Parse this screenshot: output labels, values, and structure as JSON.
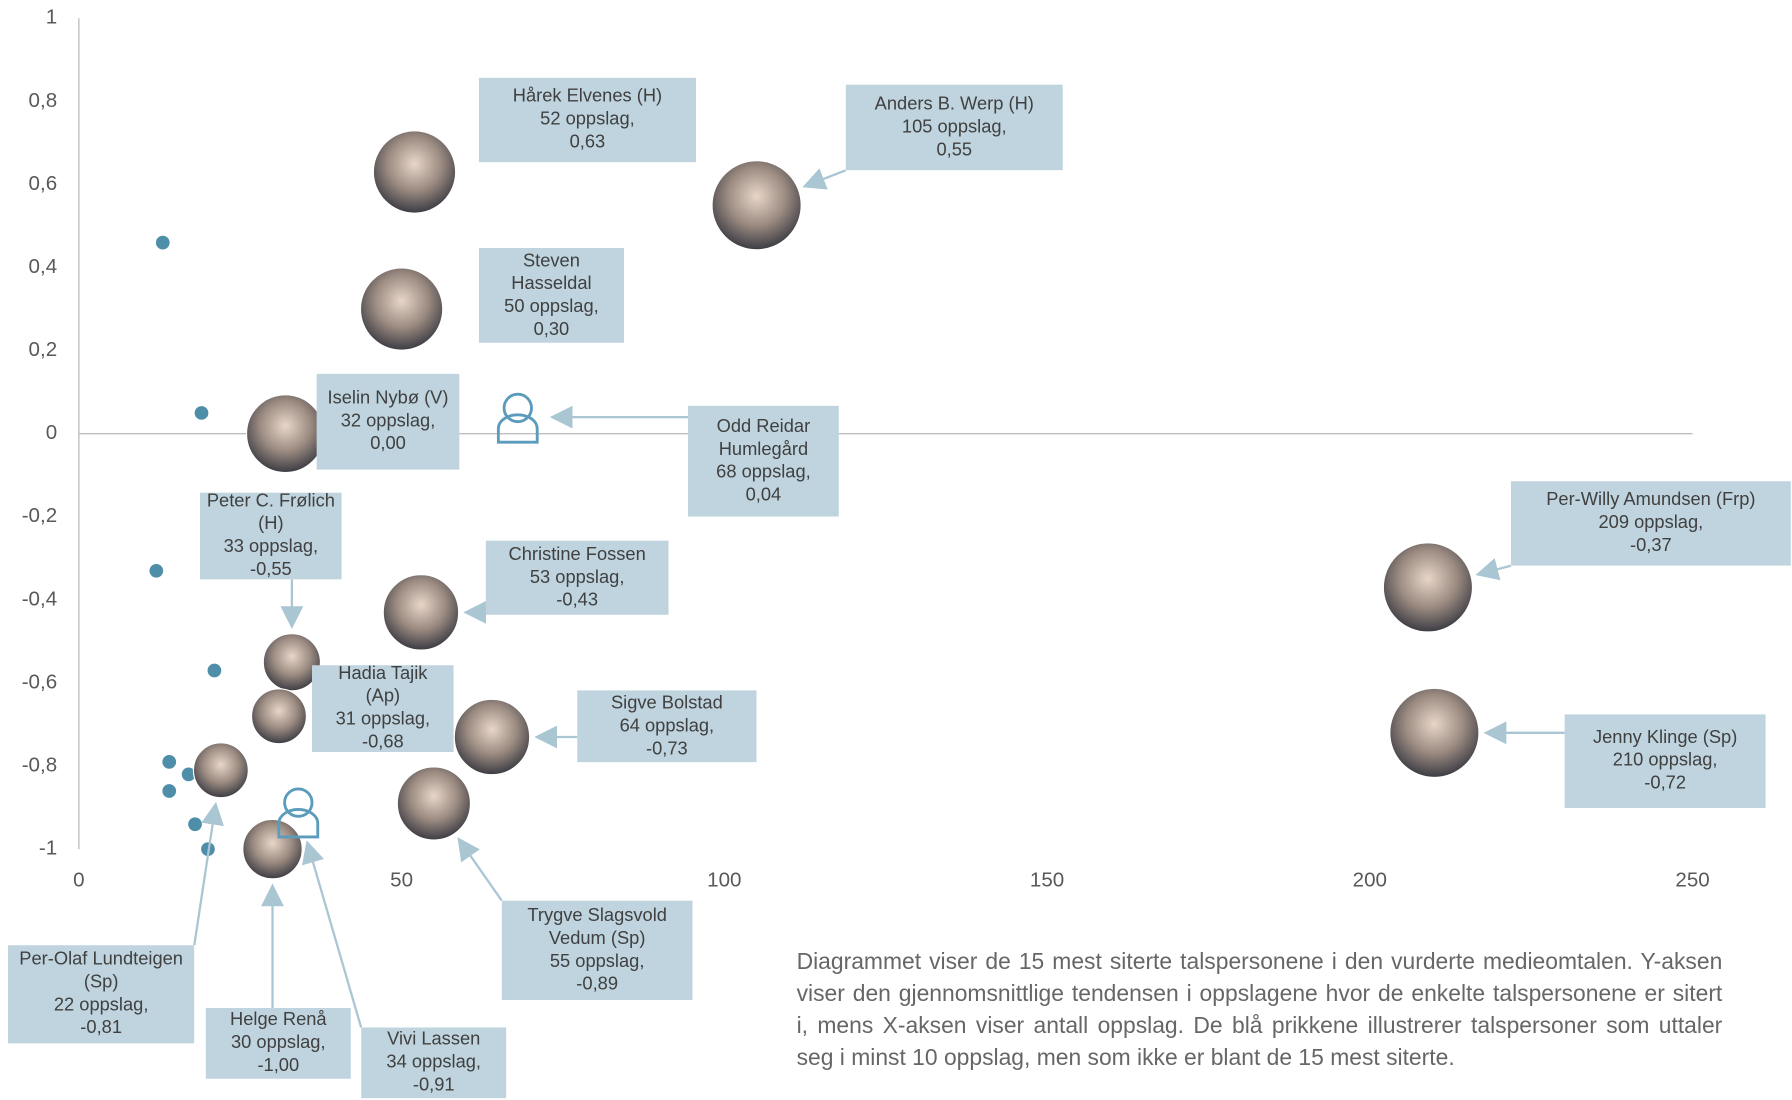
{
  "chart_data": {
    "type": "scatter",
    "xlim": [
      0,
      250
    ],
    "ylim": [
      -1,
      1
    ],
    "xticks": [
      0,
      50,
      100,
      150,
      200,
      250
    ],
    "yticks": [
      -1,
      {
        "value": -0.8,
        "label": "-0,8"
      },
      {
        "value": -0.6,
        "label": "-0,6"
      },
      {
        "value": -0.4,
        "label": "-0,4"
      },
      {
        "value": -0.2,
        "label": "-0,2"
      },
      0,
      {
        "value": 0.2,
        "label": "0,2"
      },
      {
        "value": 0.4,
        "label": "0,4"
      },
      {
        "value": 0.6,
        "label": "0,6"
      },
      {
        "value": 0.8,
        "label": "0,8"
      },
      1
    ],
    "grid": false,
    "points": {
      "color": "#4f8ea8",
      "x": [
        13,
        19,
        12,
        21,
        14,
        17,
        14,
        18,
        20
      ],
      "y": [
        0.46,
        0.05,
        -0.33,
        -0.57,
        -0.79,
        -0.82,
        -0.86,
        -0.94,
        -1.0
      ]
    },
    "people": [
      {
        "name": "Hårek Elvenes (H)",
        "x": 52,
        "y": 0.63,
        "x_label": "52 oppslag,",
        "y_label": "0,63"
      },
      {
        "name": "Anders B. Werp (H)",
        "x": 105,
        "y": 0.55,
        "x_label": "105 oppslag,",
        "y_label": "0,55"
      },
      {
        "name": "Steven Hasseldal",
        "x": 50,
        "y": 0.3,
        "x_label": "50 oppslag,",
        "y_label": "0,30"
      },
      {
        "name": "Iselin Nybø (V)",
        "x": 32,
        "y": 0.0,
        "x_label": "32 oppslag,",
        "y_label": "0,00"
      },
      {
        "name": "Odd Reidar Humlegård",
        "x": 68,
        "y": 0.04,
        "x_label": "68 oppslag,",
        "y_label": "0,04"
      },
      {
        "name": "Peter C. Frølich (H)",
        "x": 33,
        "y": -0.55,
        "x_label": "33 oppslag,",
        "y_label": "-0,55"
      },
      {
        "name": "Christine Fossen",
        "x": 53,
        "y": -0.43,
        "x_label": "53 oppslag,",
        "y_label": "-0,43"
      },
      {
        "name": "Hadia Tajik (Ap)",
        "x": 31,
        "y": -0.68,
        "x_label": "31 oppslag,",
        "y_label": "-0,68"
      },
      {
        "name": "Sigve Bolstad",
        "x": 64,
        "y": -0.73,
        "x_label": "64 oppslag,",
        "y_label": "-0,73"
      },
      {
        "name": "Per-Willy Amundsen (Frp)",
        "x": 209,
        "y": -0.37,
        "x_label": "209 oppslag,",
        "y_label": "-0,37"
      },
      {
        "name": "Jenny Klinge (Sp)",
        "x": 210,
        "y": -0.72,
        "x_label": "210 oppslag,",
        "y_label": "-0,72"
      },
      {
        "name": "Trygve Slagsvold Vedum (Sp)",
        "x": 55,
        "y": -0.89,
        "x_label": "55 oppslag,",
        "y_label": "-0,89"
      },
      {
        "name": "Per-Olaf Lundteigen (Sp)",
        "x": 22,
        "y": -0.81,
        "x_label": "22 oppslag,",
        "y_label": "-0,81"
      },
      {
        "name": "Helge Renå",
        "x": 30,
        "y": -1.0,
        "x_label": "30 oppslag,",
        "y_label": "-1,00"
      },
      {
        "name": "Vivi Lassen",
        "x": 34,
        "y": -0.91,
        "x_label": "34 oppslag,",
        "y_label": "-0,91"
      }
    ],
    "description": "Diagrammet viser de 15 mest siterte talspersonene i den vurderte medieomtalen. Y-aksen viser den gjennomsnittlige tendensen i oppslagene hvor de enkelte talspersonene er sitert i, mens X-aksen viser antall oppslag. De blå prikkene illustrerer talspersoner som uttaler seg i minst 10 oppslag, men som ikke er blant de 15 mest siterte."
  }
}
